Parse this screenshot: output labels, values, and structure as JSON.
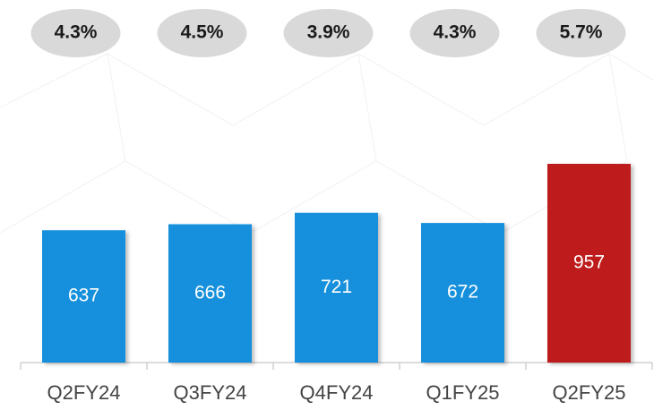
{
  "chart_data": {
    "type": "bar",
    "categories": [
      "Q2FY24",
      "Q3FY24",
      "Q4FY24",
      "Q1FY25",
      "Q2FY25"
    ],
    "values": [
      637,
      666,
      721,
      672,
      957
    ],
    "colors": [
      "#1290dc",
      "#1290dc",
      "#1290dc",
      "#1290dc",
      "#be1a1c"
    ],
    "bubble_values": [
      4.3,
      4.5,
      3.9,
      4.3,
      5.7
    ],
    "bubble_labels": [
      "4.3%",
      "4.5%",
      "3.9%",
      "4.3%",
      "5.7%"
    ]
  }
}
